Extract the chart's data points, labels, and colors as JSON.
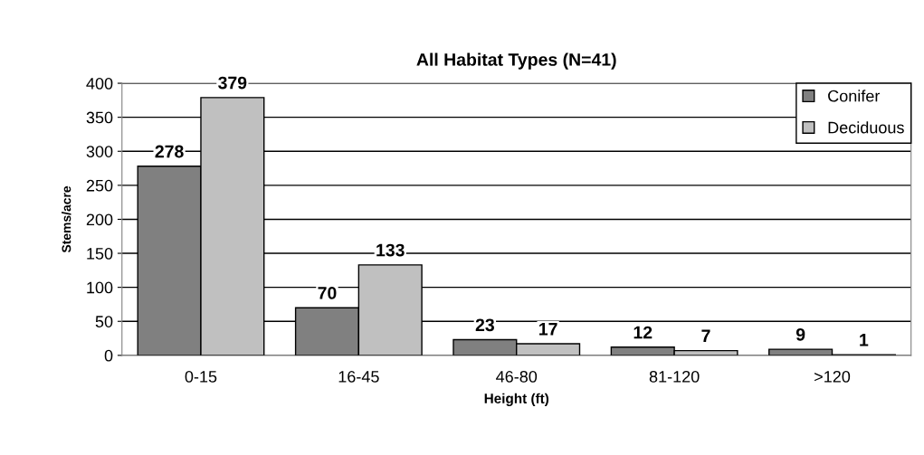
{
  "chart_data": {
    "type": "bar",
    "title": "All Habitat Types (N=41)",
    "xlabel": "Height (ft)",
    "ylabel": "Stems/acre",
    "categories": [
      "0-15",
      "16-45",
      "46-80",
      "81-120",
      ">120"
    ],
    "series": [
      {
        "name": "Conifer",
        "color": "#808080",
        "values": [
          278,
          70,
          23,
          12,
          9
        ]
      },
      {
        "name": "Deciduous",
        "color": "#c0c0c0",
        "values": [
          379,
          133,
          17,
          7,
          1
        ]
      }
    ],
    "ylim": [
      0,
      400
    ],
    "yticks": [
      0,
      50,
      100,
      150,
      200,
      250,
      300,
      350,
      400
    ],
    "grid": "y",
    "legend": "top right",
    "data_labels": true
  }
}
